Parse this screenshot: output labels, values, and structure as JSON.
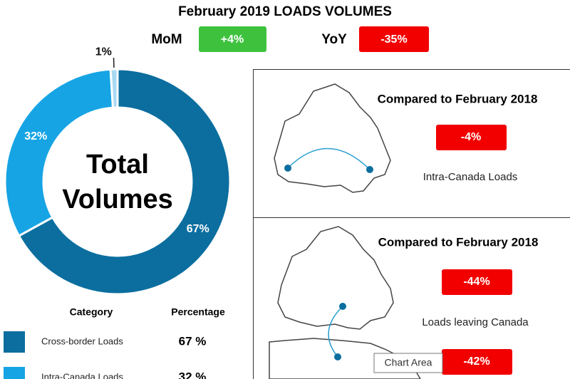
{
  "chart_data": {
    "type": "pie",
    "center_text": [
      "Total",
      "Volumes"
    ],
    "categories": [
      "Cross-border Loads",
      "Intra-Canada Loads",
      null
    ],
    "values": [
      67,
      32,
      1
    ],
    "value_labels": [
      "67%",
      "32%",
      "1%"
    ],
    "colors": [
      "#0b6e9f",
      "#16a4e4",
      "#a9daf3"
    ]
  },
  "header": {
    "title": "February 2019 LOADS VOLUMES",
    "mom": {
      "label": "MoM",
      "value": "+4%"
    },
    "yoy": {
      "label": "YoY",
      "value": "-35%"
    }
  },
  "table": {
    "columns": [
      "Category",
      "Percentage"
    ],
    "rows": [
      [
        "67 %"
      ],
      [
        "32 %"
      ]
    ]
  },
  "panels": [
    {
      "title": "Compared to February 2018",
      "badges": [
        "-4%"
      ],
      "caption": "Intra-Canada Loads"
    },
    {
      "title": "Compared to February 2018",
      "badges": [
        "-44%",
        "-42%"
      ],
      "caption": "Loads leaving Canada"
    }
  ],
  "tooltip": "Chart Area"
}
